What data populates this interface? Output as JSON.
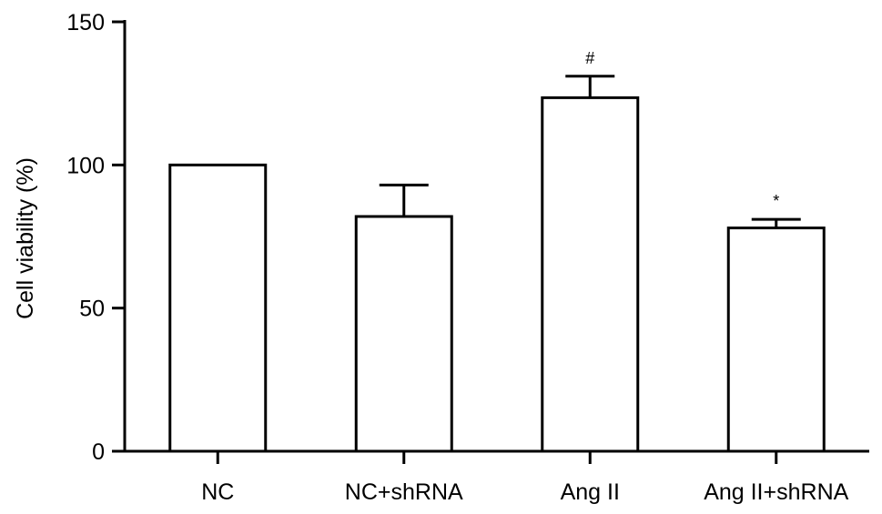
{
  "chart_data": {
    "type": "bar",
    "categories": [
      "NC",
      "NC+shRNA",
      "Ang II",
      "Ang II+shRNA"
    ],
    "values": [
      100,
      82,
      123.5,
      78
    ],
    "errors": [
      0,
      11,
      7.5,
      3
    ],
    "annotations": [
      "",
      "",
      "#",
      "*"
    ],
    "ylabel": "Cell viability (%)",
    "xlabel": "",
    "ylim": [
      0,
      150
    ],
    "yticks": [
      0,
      50,
      100,
      150
    ],
    "grid": false,
    "colors": {
      "bar_fill": "#ffffff",
      "bar_stroke": "#000000",
      "axis": "#000000"
    }
  }
}
